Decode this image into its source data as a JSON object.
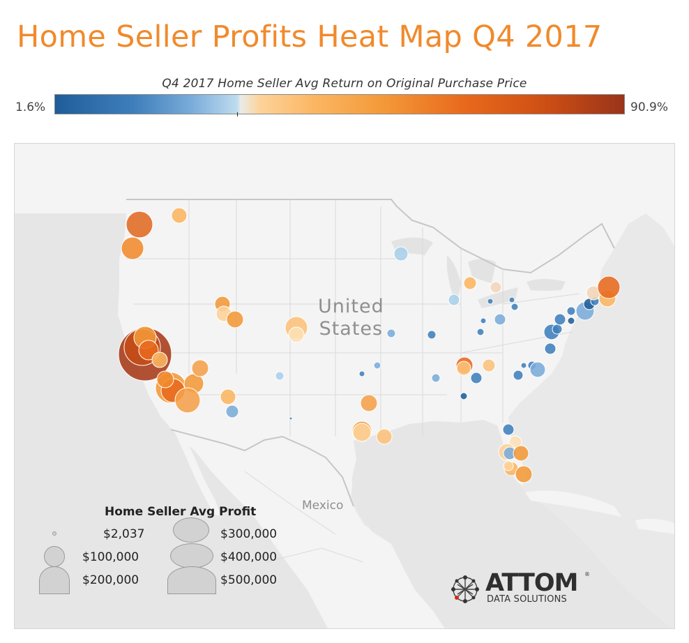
{
  "title": "Home Seller Profits Heat Map Q4 2017",
  "color_legend": {
    "title": "Q4 2017 Home Seller Avg Return on Original Purchase Price",
    "min_label": "1.6%",
    "max_label": "90.9%",
    "colors": [
      "#1f5d99",
      "#3f7fbc",
      "#7aacd9",
      "#bedcef",
      "#fdd39a",
      "#fbb560",
      "#f39838",
      "#e8691c",
      "#ce4f14",
      "#99341a"
    ]
  },
  "map": {
    "country_label_line1": "United",
    "country_label_line2": "States",
    "mexico_label": "Mexico",
    "background": "#e9e9e9",
    "land_color": "#f4f4f4"
  },
  "size_legend": {
    "title": "Home Seller Avg Profit",
    "items": [
      {
        "label": "$2,037"
      },
      {
        "label": "$100,000"
      },
      {
        "label": "$200,000"
      },
      {
        "label": "$300,000"
      },
      {
        "label": "$400,000"
      },
      {
        "label": "$500,000"
      }
    ]
  },
  "brand": {
    "name": "ATTOM",
    "subtitle": "DATA SOLUTIONS",
    "reg": "®",
    "icon": "network-globe-icon"
  }
}
